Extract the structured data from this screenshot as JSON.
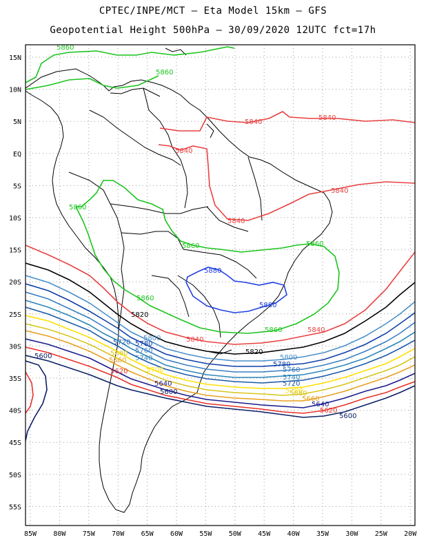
{
  "header": {
    "line1": "CPTEC/INPE/MCT –  Eta Model 15km – GFS",
    "line2": "Geopotential Height 500hPa – 30/09/2020 12UTC fct=17h"
  },
  "axes": {
    "lat_labels": [
      "15N",
      "10N",
      "5N",
      "EQ",
      "5S",
      "10S",
      "15S",
      "20S",
      "25S",
      "30S",
      "35S",
      "40S",
      "45S",
      "50S",
      "55S"
    ],
    "lon_labels": [
      "85W",
      "80W",
      "75W",
      "70W",
      "65W",
      "60W",
      "55W",
      "50W",
      "45W",
      "40W",
      "35W",
      "30W",
      "25W",
      "20W"
    ]
  },
  "colors": {
    "c5600": "#0b1f66",
    "c5620": "#e8322a",
    "c5640": "#1a1a8c",
    "c5660": "#e8a021",
    "c5680": "#d7c51c",
    "c5700": "#ffe000",
    "c5720": "#1c5aa8",
    "c5740": "#2d86b8",
    "c5760": "#3a7fc2",
    "c5780": "#0e3fa8",
    "c5800": "#4a8fc9",
    "c5820": "#000000",
    "c5840": "#e84040",
    "c5860": "#19c41c",
    "c5880": "#1f3fe0",
    "land": "#000000"
  },
  "contour_labels": {
    "l5860_a": "5860",
    "l5860_b": "5860",
    "l5840_a": "5840",
    "l5840_b": "5840",
    "l5840_c": "5840",
    "l5840_d": "5840",
    "l5840_e": "5840",
    "l5860_c": "5860",
    "l5860_d": "5860",
    "l5860_e": "5860",
    "l5860_f": "5860",
    "l5880_a": "5880",
    "l5880_b": "5880",
    "l5860_g": "5860",
    "l5840_f": "5840",
    "l5820_a": "5820",
    "l5840_g": "5840",
    "l5800_a": "5800",
    "l5780_a": "5780",
    "l5720_a": "5720",
    "l5760_a": "5760",
    "l5680_a": "5680",
    "l5740_a": "5740",
    "l5660_a": "5660",
    "l5700_a": "5700",
    "l5620_a": "5620",
    "l5640_a": "5640",
    "l5600_a": "5600",
    "l5600_b": "5600",
    "l5820_b": "5820",
    "l5780_b": "5780",
    "l5800_b": "5800",
    "l5760_b": "5760",
    "l5740_b": "5740",
    "l5720_b": "5720",
    "l5700_b": "5700",
    "l5680_b": "5680",
    "l5660_b": "5660",
    "l5640_b": "5640",
    "l5620_b": "5620",
    "l5600_c": "5600"
  }
}
